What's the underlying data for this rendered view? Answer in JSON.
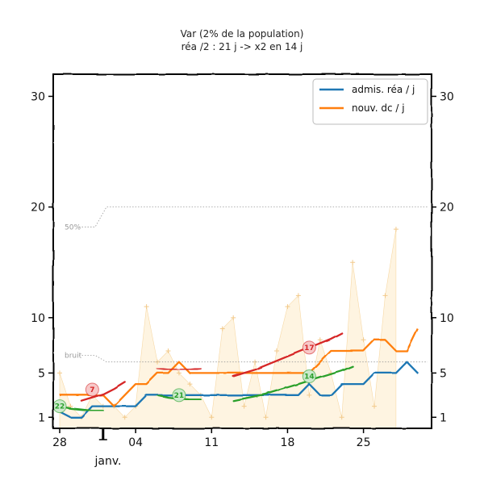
{
  "chart_data": {
    "type": "line",
    "title": "Var (2% de la population)",
    "subtitle": "réa /2 : 21 j -> x2 en 14 j",
    "x_ticks": [
      "28",
      "04",
      "11",
      "18",
      "25"
    ],
    "month_label": "janv.",
    "y_ticks": [
      "1",
      "5",
      "10",
      "20",
      "30"
    ],
    "ylim": [
      0,
      32
    ],
    "grid": false,
    "legend_position": "top-right",
    "series": [
      {
        "name": "admis. réa / j",
        "color": "#1f77b4",
        "values": [
          1.5,
          1.0,
          1.0,
          2.0,
          2.0,
          2.0,
          2.0,
          2.0,
          3.0,
          3.0,
          3.0,
          3.0,
          3.0,
          3.0,
          3.0,
          3.0,
          3.0,
          3.0,
          3.0,
          3.0,
          3.0,
          3.0,
          3.0,
          4.0,
          3.0,
          3.0,
          4.0,
          4.0,
          4.0,
          5.0,
          5.0,
          5.0,
          6.0,
          5.0
        ]
      },
      {
        "name": "nouv. dc / j",
        "color": "#ff7f0e",
        "values": [
          3.0,
          3.0,
          3.0,
          3.0,
          3.0,
          2.0,
          3.0,
          4.0,
          4.0,
          5.0,
          5.0,
          6.0,
          5.0,
          5.0,
          5.0,
          5.0,
          5.0,
          5.0,
          5.0,
          5.0,
          5.0,
          5.0,
          5.0,
          5.0,
          6.0,
          7.0,
          7.0,
          7.0,
          7.0,
          8.0,
          8.0,
          7.0,
          7.0,
          9.0
        ]
      }
    ],
    "daily_values": [
      5,
      2,
      1,
      3,
      2,
      2,
      1,
      2,
      11,
      6,
      7,
      5,
      4,
      3,
      1,
      9,
      10,
      2,
      6,
      1,
      7,
      11,
      12,
      3,
      8,
      5,
      1,
      15,
      8,
      2,
      12,
      18
    ],
    "trend_segments": [
      {
        "color": "#d62728",
        "start": 2,
        "values": [
          2.5,
          2.8,
          3.1,
          3.6,
          4.2
        ]
      },
      {
        "color": "#d62728",
        "start": 9,
        "values": [
          5.4,
          5.3,
          5.3,
          5.3,
          5.4
        ]
      },
      {
        "color": "#d62728",
        "start": 16,
        "values": [
          4.7,
          5.0,
          5.3,
          5.7,
          6.1,
          6.5,
          6.9,
          7.3,
          7.7,
          8.1,
          8.6
        ]
      },
      {
        "color": "#2ca02c",
        "start": 0,
        "values": [
          2.0,
          1.8,
          1.7,
          1.6,
          1.6
        ]
      },
      {
        "color": "#2ca02c",
        "start": 9,
        "values": [
          3.0,
          2.8,
          2.7,
          2.6,
          2.6
        ]
      },
      {
        "color": "#2ca02c",
        "start": 16,
        "values": [
          2.5,
          2.7,
          2.9,
          3.1,
          3.4,
          3.7,
          4.0,
          4.3,
          4.6,
          4.9,
          5.2,
          5.6
        ]
      }
    ],
    "badges": [
      {
        "label": "7",
        "color": "#d62728",
        "day": 3,
        "value": 3.5
      },
      {
        "label": "17",
        "color": "#d62728",
        "day": 23,
        "value": 7.3
      },
      {
        "label": "22",
        "color": "#2ca02c",
        "day": 0,
        "value": 2.0
      },
      {
        "label": "21",
        "color": "#2ca02c",
        "day": 11,
        "value": 3.0
      },
      {
        "label": "14",
        "color": "#2ca02c",
        "day": 23,
        "value": 4.7
      }
    ],
    "thresholds": [
      {
        "label": "50%",
        "value": 20
      },
      {
        "label": "bruit",
        "value": 6
      }
    ]
  }
}
